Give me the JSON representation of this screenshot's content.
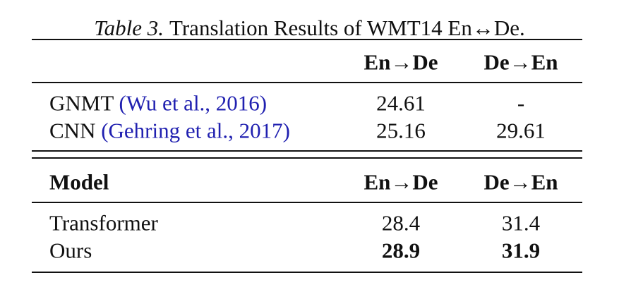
{
  "caption": {
    "label": "Table 3.",
    "text": "Translation Results of WMT14 En↔De."
  },
  "table1": {
    "header": [
      "En→De",
      "De→En"
    ],
    "rows": [
      {
        "model": "GNMT",
        "citation": "(Wu et al., 2016)",
        "cells": [
          "24.61",
          "-"
        ]
      },
      {
        "model": "CNN",
        "citation": "(Gehring et al., 2017)",
        "cells": [
          "25.16",
          "29.61"
        ]
      }
    ]
  },
  "table2": {
    "header": [
      "Model",
      "En→De",
      "De→En"
    ],
    "rows": [
      [
        "Transformer",
        "28.4",
        "31.4"
      ],
      [
        "Ours",
        "28.9",
        "31.9"
      ]
    ]
  }
}
